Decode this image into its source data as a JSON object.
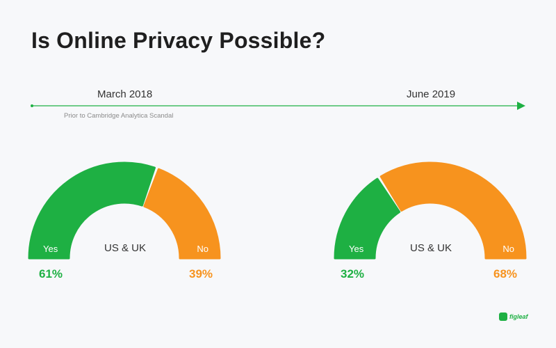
{
  "title": "Is Online Privacy Possible?",
  "timeline": {
    "start_label": "March 2018",
    "end_label": "June 2019",
    "note": "Prior to Cambridge Analytica Scandal"
  },
  "colors": {
    "yes": "#1eb043",
    "no": "#f7931e",
    "line": "#1eb043"
  },
  "chart_data": [
    {
      "type": "pie",
      "style": "semicircle-gauge",
      "period": "March 2018",
      "center_label": "US & UK",
      "labels": [
        "Yes",
        "No"
      ],
      "values": [
        61,
        39
      ],
      "value_labels": [
        "61%",
        "39%"
      ]
    },
    {
      "type": "pie",
      "style": "semicircle-gauge",
      "period": "June 2019",
      "center_label": "US & UK",
      "labels": [
        "Yes",
        "No"
      ],
      "values": [
        32,
        68
      ],
      "value_labels": [
        "32%",
        "68%"
      ]
    }
  ],
  "logo": {
    "icon": "figleaf-logo-icon",
    "text": "figleaf"
  }
}
